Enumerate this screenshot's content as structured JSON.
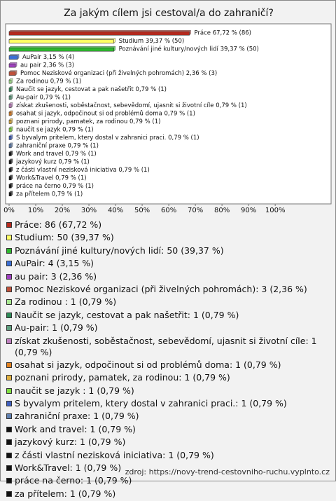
{
  "chart_data": {
    "type": "bar",
    "orientation": "horizontal",
    "title": "Za jakým cílem jsi cestoval/a do zahraničí?",
    "source": "zdroj: https://novy-trend-cestovniho-ruchu.vyplnto.cz",
    "categories": [
      "Práce",
      "Studium",
      "Poznávání jiné kultury/nových lidí",
      "AuPair",
      "au pair",
      "Pomoc Neziskové organizaci (při živelných pohromách)",
      "Za rodinou ",
      "Naučit se jazyk, cestovat a pak našetřit",
      "Au-pair",
      "získat zkušenosti, soběstačnost, sebevědomí, ujasnit si životní cíle",
      "osahat si jazyk, odpočinout si od problémů doma",
      "poznani prirody, pamatek, za rodinou",
      "naučit se jazyk ",
      "S byvalym pritelem, ktery dostal v zahranici praci.",
      "zahraniční praxe",
      "Work and travel",
      "jazykový kurz",
      "z části vlastní nezisková iniciativa",
      "Work&Travel",
      "práce na černo",
      "za přítelem"
    ],
    "values": [
      67.72,
      39.37,
      39.37,
      3.15,
      2.36,
      2.36,
      0.79,
      0.79,
      0.79,
      0.79,
      0.79,
      0.79,
      0.79,
      0.79,
      0.79,
      0.79,
      0.79,
      0.79,
      0.79,
      0.79,
      0.79
    ],
    "value_labels": [
      "67,72 % (86)",
      "39,37 % (50)",
      "39,37 % (50)",
      "3,15 % (4)",
      "2,36 % (3)",
      "2,36 % (3)",
      "0,79 % (1)",
      "0,79 % (1)",
      "0,79 % (1)",
      "0,79 % (1)",
      "0,79 % (1)",
      "0,79 % (1)",
      "0,79 % (1)",
      "0,79 % (1)",
      "0,79 % (1)",
      "0,79 % (1)",
      "0,79 % (1)",
      "0,79 % (1)",
      "0,79 % (1)",
      "0,79 % (1)",
      "0,79 % (1)"
    ],
    "legend_labels": [
      "Práce: 86 (67,72 %)",
      "Studium: 50 (39,37 %)",
      "Poznávání jiné kultury/nových lidí: 50 (39,37 %)",
      "AuPair: 4 (3,15 %)",
      "au pair: 3 (2,36 %)",
      "Pomoc Neziskové organizaci (při živelných pohromách): 3 (2,36 %)",
      "Za rodinou : 1 (0,79 %)",
      "Naučit se jazyk, cestovat a pak našetřit: 1 (0,79 %)",
      "Au-pair: 1 (0,79 %)",
      "získat zkušenosti, soběstačnost, sebevědomí, ujasnit si životní cíle: 1 (0,79 %)",
      "osahat si jazyk, odpočinout si od problémů doma: 1 (0,79 %)",
      "poznani prirody, pamatek, za rodinou: 1 (0,79 %)",
      "naučit se jazyk : 1 (0,79 %)",
      "S byvalym pritelem, ktery dostal v zahranici praci.: 1 (0,79 %)",
      "zahraniční praxe: 1 (0,79 %)",
      "Work and travel: 1 (0,79 %)",
      "jazykový kurz: 1 (0,79 %)",
      "z části vlastní nezisková iniciativa: 1 (0,79 %)",
      "Work&Travel: 1 (0,79 %)",
      "práce na černo: 1 (0,79 %)",
      "za přítelem: 1 (0,79 %)"
    ],
    "colors": [
      "#b5291d",
      "#ffff66",
      "#2db82d",
      "#3b6fd4",
      "#a040c0",
      "#c0503a",
      "#a8e890",
      "#2e8b57",
      "#5f9f7f",
      "#c080c0",
      "#e08020",
      "#e0b040",
      "#80e040",
      "#4060c0",
      "#6080b0",
      "#111111",
      "#111111",
      "#111111",
      "#111111",
      "#111111",
      "#111111"
    ],
    "xlim": [
      0,
      121
    ],
    "xticks": [
      {
        "value": 0,
        "label": "0%"
      },
      {
        "value": 10,
        "label": "10%"
      },
      {
        "value": 20,
        "label": "20%"
      },
      {
        "value": 30,
        "label": "30%"
      },
      {
        "value": 40,
        "label": "40%"
      },
      {
        "value": 50,
        "label": "50%"
      },
      {
        "value": 60,
        "label": "60%"
      },
      {
        "value": 70,
        "label": "70%"
      },
      {
        "value": 80,
        "label": "80%"
      },
      {
        "value": 90,
        "label": "90%"
      },
      {
        "value": 100,
        "label": "100%"
      }
    ]
  }
}
